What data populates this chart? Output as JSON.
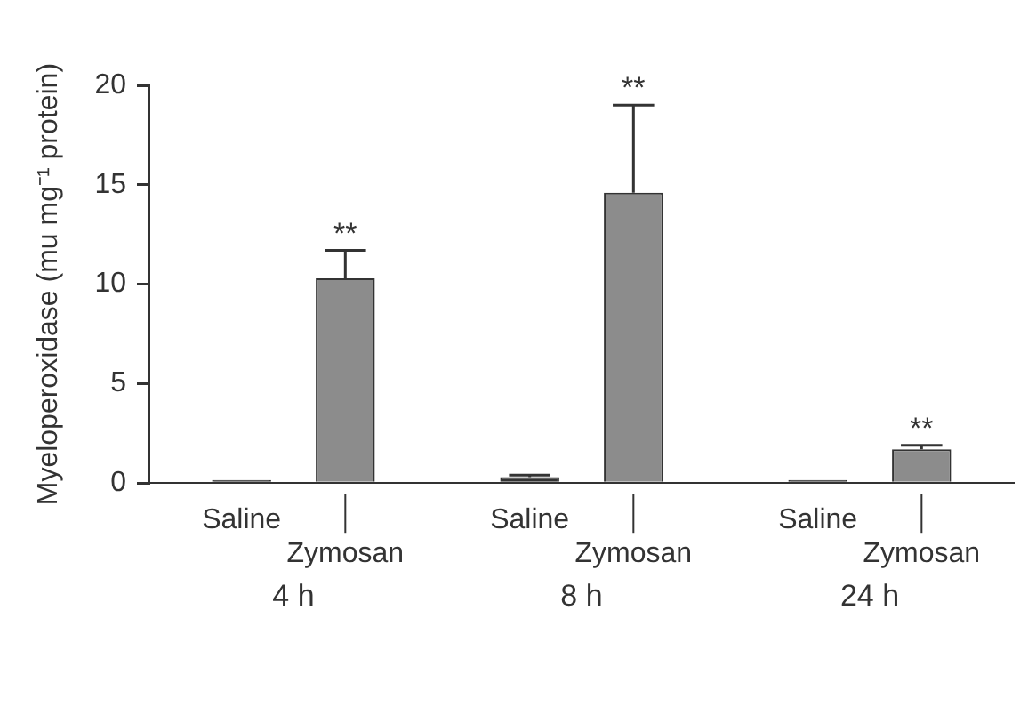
{
  "chart_data": {
    "type": "bar",
    "ylabel": "Myeloperoxidase (mu mg⁻¹ protein)",
    "categories": [
      "4 h",
      "8 h",
      "24 h"
    ],
    "series": [
      {
        "name": "Saline",
        "color": "#333333",
        "values": [
          0.15,
          0.3,
          0.15
        ],
        "errors": [
          null,
          [
            0.3,
            0.4
          ],
          null
        ]
      },
      {
        "name": "Zymosan",
        "color": "#8c8c8c",
        "values": [
          10.3,
          14.6,
          1.7
        ],
        "errors": [
          [
            10.3,
            11.7
          ],
          [
            14.6,
            19.0
          ],
          [
            1.7,
            1.9
          ]
        ]
      }
    ],
    "ylim": [
      0,
      20
    ],
    "yticks": [
      0,
      5,
      10,
      15,
      20
    ],
    "grid": false,
    "legend": "bottom",
    "annotations": [
      "**",
      "**",
      "**"
    ]
  }
}
